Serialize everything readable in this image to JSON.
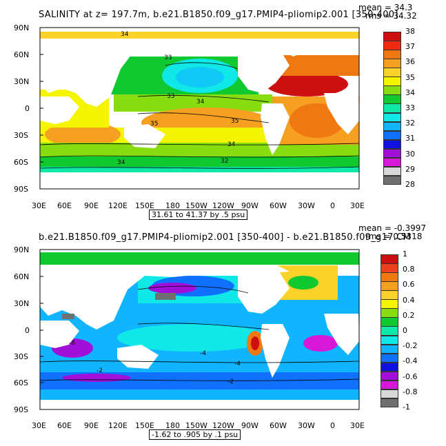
{
  "panel1": {
    "title": "SALINITY at z= 197.7m, b.e21.B1850.f09_g17.PMIP4-pliomip2.001 [350-400]",
    "mean": "mean = 34.3",
    "rms": "rms = 34.32",
    "contour_info": "31.61 to 41.37 by .5 psu",
    "colorbar": {
      "labels": [
        "38",
        "37",
        "36",
        "35",
        "34",
        "33",
        "32",
        "31",
        "30",
        "29",
        "28"
      ],
      "colors": [
        "#cc1010",
        "#ee2a10",
        "#f07810",
        "#f5a020",
        "#fad22a",
        "#f5f500",
        "#88dd10",
        "#10c830",
        "#10e8a8",
        "#10e8e8",
        "#10b4ff",
        "#1070ff",
        "#1010e0",
        "#a010d8",
        "#d818d8",
        "#d8d8d8",
        "#707070"
      ]
    },
    "contour_labels": [
      "34",
      "33",
      "33",
      "34",
      "35",
      "35",
      "34",
      "32",
      "34"
    ]
  },
  "panel2": {
    "title": "b.e21.B1850.f09_g17.PMIP4-pliomip2.001 [350-400] - b.e21.B1850.f09_g17.CM",
    "mean": "mean = -0.3997",
    "rms": "rms = 0.5318",
    "contour_info": "-1.62 to .905 by .1 psu",
    "colorbar": {
      "labels": [
        "1",
        "0.8",
        "0.6",
        "0.4",
        "0.2",
        "0",
        "-0.2",
        "-0.4",
        "-0.6",
        "-0.8",
        "-1"
      ],
      "colors": [
        "#cc1010",
        "#ee4020",
        "#f07810",
        "#f5a020",
        "#fad22a",
        "#f5f500",
        "#88dd10",
        "#10c830",
        "#10e8a8",
        "#10e8e8",
        "#10b4ff",
        "#1070ff",
        "#1010e0",
        "#a010d8",
        "#d818d8",
        "#d8d8d8",
        "#707070"
      ]
    },
    "contour_labels": [
      "-6",
      "-4",
      "-4",
      "-2",
      "-2"
    ]
  },
  "axes": {
    "lat_labels": [
      "90N",
      "60N",
      "30N",
      "0",
      "30S",
      "60S",
      "90S"
    ],
    "lon_labels": [
      "30E",
      "60E",
      "90E",
      "120E",
      "150E",
      "180",
      "150W",
      "120W",
      "90W",
      "60W",
      "30W",
      "0",
      "30E"
    ]
  }
}
